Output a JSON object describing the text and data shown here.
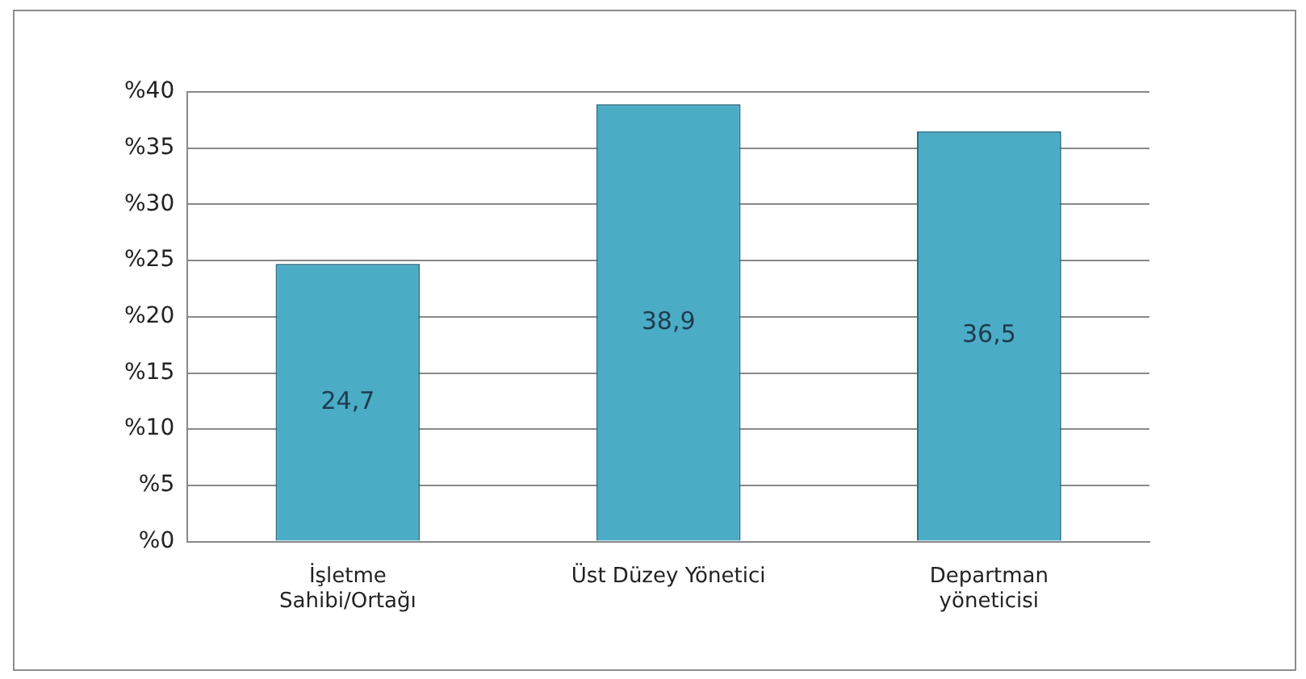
{
  "chart_data": {
    "type": "bar",
    "categories": [
      "İşletme Sahibi/Ortağı",
      "Üst Düzey Yönetici",
      "Departman yöneticisi"
    ],
    "values": [
      24.7,
      38.9,
      36.5
    ],
    "value_labels": [
      "24,7",
      "38,9",
      "36,5"
    ],
    "color": "#4bacc6",
    "ylim": [
      0,
      40
    ],
    "yticks": [
      {
        "value": 0,
        "label": "%0"
      },
      {
        "value": 5,
        "label": "%5"
      },
      {
        "value": 10,
        "label": "%10"
      },
      {
        "value": 15,
        "label": "%15"
      },
      {
        "value": 20,
        "label": "%20"
      },
      {
        "value": 25,
        "label": "%25"
      },
      {
        "value": 30,
        "label": "%30"
      },
      {
        "value": 35,
        "label": "%35"
      },
      {
        "value": 40,
        "label": "%40"
      }
    ],
    "grid": "y",
    "legend": false
  }
}
